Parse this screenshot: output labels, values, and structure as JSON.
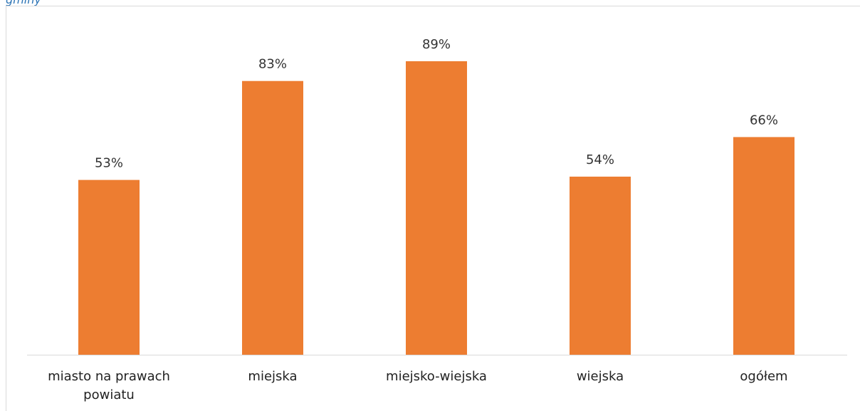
{
  "chart_data": {
    "type": "bar",
    "title": "gminy",
    "categories": [
      "miasto na prawach powiatu",
      "miejska",
      "miejsko-wiejska",
      "wiejska",
      "ogółem"
    ],
    "values": [
      53,
      83,
      89,
      54,
      66
    ],
    "value_labels": [
      "53%",
      "83%",
      "89%",
      "54%",
      "66%"
    ],
    "color": "#ed7d31",
    "ylim": [
      0,
      100
    ]
  }
}
